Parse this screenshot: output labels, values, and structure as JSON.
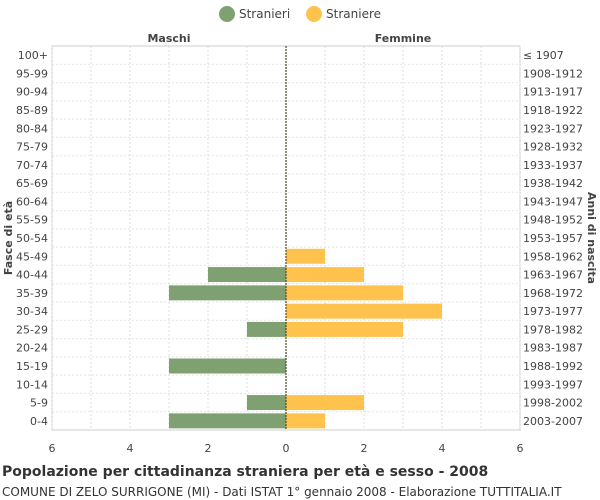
{
  "chart_data": {
    "type": "bar",
    "orientation": "horizontal-pyramid",
    "title": "Popolazione per cittadinanza straniera per età e sesso - 2008",
    "subtitle": "COMUNE DI ZELO SURRIGONE (MI) - Dati ISTAT 1° gennaio 2008 - Elaborazione TUTTITALIA.IT",
    "left_header": "Maschi",
    "right_header": "Femmine",
    "ylabel_left": "Fasce di età",
    "ylabel_right": "Anni di nascita",
    "xlim": [
      -6,
      6
    ],
    "x_ticks": [
      -6,
      -4,
      -2,
      0,
      2,
      4,
      6
    ],
    "x_tick_labels": [
      "6",
      "4",
      "2",
      "0",
      "2",
      "4",
      "6"
    ],
    "categories": [
      "100+",
      "95-99",
      "90-94",
      "85-89",
      "80-84",
      "75-79",
      "70-74",
      "65-69",
      "60-64",
      "55-59",
      "50-54",
      "45-49",
      "40-44",
      "35-39",
      "30-34",
      "25-29",
      "20-24",
      "15-19",
      "10-14",
      "5-9",
      "0-4"
    ],
    "birth_years": [
      "≤ 1907",
      "1908-1912",
      "1913-1917",
      "1918-1922",
      "1923-1927",
      "1928-1932",
      "1933-1937",
      "1938-1942",
      "1943-1947",
      "1948-1952",
      "1953-1957",
      "1958-1962",
      "1963-1967",
      "1968-1972",
      "1973-1977",
      "1978-1982",
      "1983-1987",
      "1988-1992",
      "1993-1997",
      "1998-2002",
      "2003-2007"
    ],
    "series": [
      {
        "name": "Stranieri",
        "color": "#7fa070",
        "values": [
          0,
          0,
          0,
          0,
          0,
          0,
          0,
          0,
          0,
          0,
          0,
          0,
          2,
          3,
          0,
          1,
          0,
          3,
          0,
          1,
          3
        ]
      },
      {
        "name": "Straniere",
        "color": "#ffc34d",
        "values": [
          0,
          0,
          0,
          0,
          0,
          0,
          0,
          0,
          0,
          0,
          0,
          1,
          2,
          3,
          4,
          3,
          0,
          0,
          0,
          2,
          1
        ]
      }
    ]
  }
}
